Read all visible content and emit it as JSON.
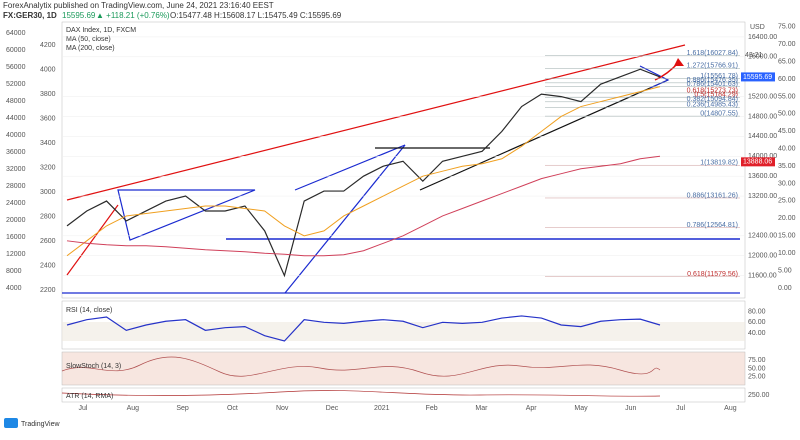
{
  "header": {
    "publisher": "ForexAnalytix published on TradingView.com, June 24, 2021 23:16:40 EEST",
    "symbol": "FX:GER30, 1D",
    "last": "15595.69",
    "change": "▲ +118.21 (+0.76%)",
    "ohlc": "O:15477.48 H:15608.17 L:15475.49 C:15595.69"
  },
  "legend": [
    "DAX Index, 1D, FXCM",
    "MA (50, close)",
    "MA (200, close)"
  ],
  "chart_data": {
    "type": "line",
    "series": [
      {
        "name": "Close",
        "color": "#2a2a2a",
        "values": [
          12600,
          12900,
          13100,
          12700,
          12900,
          13100,
          13200,
          12900,
          12900,
          13000,
          12500,
          11600,
          13100,
          13300,
          13300,
          13600,
          13800,
          13900,
          13500,
          13900,
          14000,
          14100,
          14500,
          15000,
          15250,
          15200,
          15100,
          15450,
          15600,
          15750,
          15595.69
        ]
      },
      {
        "name": "MA50",
        "color": "#f0a020",
        "values": [
          12000,
          12300,
          12600,
          12800,
          12850,
          12900,
          12950,
          13000,
          13000,
          12950,
          12900,
          12600,
          12400,
          12500,
          12800,
          13000,
          13200,
          13400,
          13600,
          13700,
          13800,
          13850,
          13950,
          14200,
          14500,
          14800,
          15000,
          15100,
          15200,
          15300,
          15400
        ]
      },
      {
        "name": "MA200",
        "color": "#d0405a",
        "values": [
          12300,
          12250,
          12220,
          12200,
          12200,
          12180,
          12150,
          12120,
          12100,
          12080,
          12050,
          12030,
          12000,
          12000,
          12020,
          12100,
          12250,
          12400,
          12600,
          12800,
          12950,
          13100,
          13250,
          13400,
          13550,
          13650,
          13750,
          13800,
          13850,
          13950,
          14000
        ]
      }
    ],
    "ylim": [
      11150,
      16700
    ],
    "yticks": [
      {
        "value": 16400,
        "label": "16400.00"
      },
      {
        "value": 16000,
        "label": "16000.00"
      },
      {
        "value": 15200,
        "label": "15200.00"
      },
      {
        "value": 14800,
        "label": "14800.00"
      },
      {
        "value": 14400,
        "label": "14400.00"
      },
      {
        "value": 14000,
        "label": "14000.00"
      },
      {
        "value": 13600,
        "label": "13600.00"
      },
      {
        "value": 13200,
        "label": "13200.00"
      },
      {
        "value": 12400,
        "label": "12400.00"
      },
      {
        "value": 12000,
        "label": "12000.00"
      },
      {
        "value": 11600,
        "label": "11600.00"
      }
    ],
    "y_unit": "USD",
    "price_tags": [
      {
        "value": 15595.69,
        "label": "15595.69",
        "color": "#2962ff"
      },
      {
        "value": 13888.06,
        "label": "13888.06",
        "color": "#e0202a"
      }
    ],
    "countdown": "43:21",
    "fib_levels": [
      {
        "value": 16027.84,
        "label": "1.618(16027.84)"
      },
      {
        "value": 15766.91,
        "label": "1.272(15766.91)"
      },
      {
        "value": 15561.78,
        "label": "1(15561.78)"
      },
      {
        "value": 15476.35,
        "label": "0.886(15476.35)"
      },
      {
        "value": 15401.63,
        "label": "0.786(15401.63)"
      },
      {
        "value": 15273.73,
        "label": "0.618(15273.73)"
      },
      {
        "value": 15184.29,
        "label": "0.5(15184.29)"
      },
      {
        "value": 15094.84,
        "label": "0.382(15094.84)"
      },
      {
        "value": 14985.43,
        "label": "0.236(14985.43)"
      },
      {
        "value": 14807.55,
        "label": "0(14807.55)"
      },
      {
        "value": 13819.82,
        "label": "1(13819.82)"
      },
      {
        "value": 13161.26,
        "label": "0.886(13161.26)"
      },
      {
        "value": 12564.81,
        "label": "0.786(12564.81)"
      },
      {
        "value": 11579.56,
        "label": "0.618(11579.56)"
      }
    ],
    "y3lim": [
      -2.9,
      76.4
    ],
    "y3ticks": [
      {
        "value": 75,
        "label": "75.00"
      },
      {
        "value": 70,
        "label": "70.00"
      },
      {
        "value": 65,
        "label": "65.00"
      },
      {
        "value": 60,
        "label": "60.00"
      },
      {
        "value": 55,
        "label": "55.00"
      },
      {
        "value": 50,
        "label": "50.00"
      },
      {
        "value": 45,
        "label": "45.00"
      },
      {
        "value": 40,
        "label": "40.00"
      },
      {
        "value": 35,
        "label": "35.00"
      },
      {
        "value": 30,
        "label": "30.00"
      },
      {
        "value": 25,
        "label": "25.00"
      },
      {
        "value": 20,
        "label": "20.00"
      },
      {
        "value": 15,
        "label": "15.00"
      },
      {
        "value": 10,
        "label": "10.00"
      },
      {
        "value": 5,
        "label": "5.00"
      },
      {
        "value": 0,
        "label": "0.00"
      }
    ],
    "left_axis_a": [
      64000,
      60000,
      56000,
      52000,
      48000,
      44000,
      40000,
      36000,
      32000,
      28000,
      24000,
      20000,
      16000,
      12000,
      8000,
      4000
    ],
    "left_axis_b": [
      4200,
      4000,
      3800,
      3600,
      3400,
      3200,
      3000,
      2800,
      2600,
      2400,
      2200
    ],
    "x_labels": [
      "Jul",
      "Aug",
      "Sep",
      "Oct",
      "Nov",
      "Dec",
      "2021",
      "Feb",
      "Mar",
      "Apr",
      "May",
      "Jun",
      "Jul",
      "Aug"
    ]
  },
  "rsi": {
    "title": "RSI (14, close)",
    "color": "#2633c8",
    "values": [
      55,
      65,
      70,
      45,
      55,
      62,
      65,
      45,
      50,
      52,
      35,
      25,
      65,
      60,
      58,
      62,
      65,
      62,
      50,
      60,
      58,
      60,
      68,
      72,
      68,
      55,
      52,
      62,
      65,
      66,
      55
    ],
    "ylim": [
      10,
      100
    ],
    "yticks": [
      {
        "value": 80,
        "label": "80.00"
      },
      {
        "value": 60,
        "label": "60.00"
      },
      {
        "value": 40,
        "label": "40.00"
      }
    ]
  },
  "stoch": {
    "title": "SlowStoch (14, 3)",
    "yticks": [
      {
        "value": 75,
        "label": "75.00"
      },
      {
        "value": 50,
        "label": "50.00"
      },
      {
        "value": 25,
        "label": "25.00"
      }
    ]
  },
  "atr": {
    "title": "ATR (14, RMA)",
    "yticks": [
      {
        "value": 250,
        "label": "250.00"
      }
    ]
  },
  "footer": "TradingView"
}
